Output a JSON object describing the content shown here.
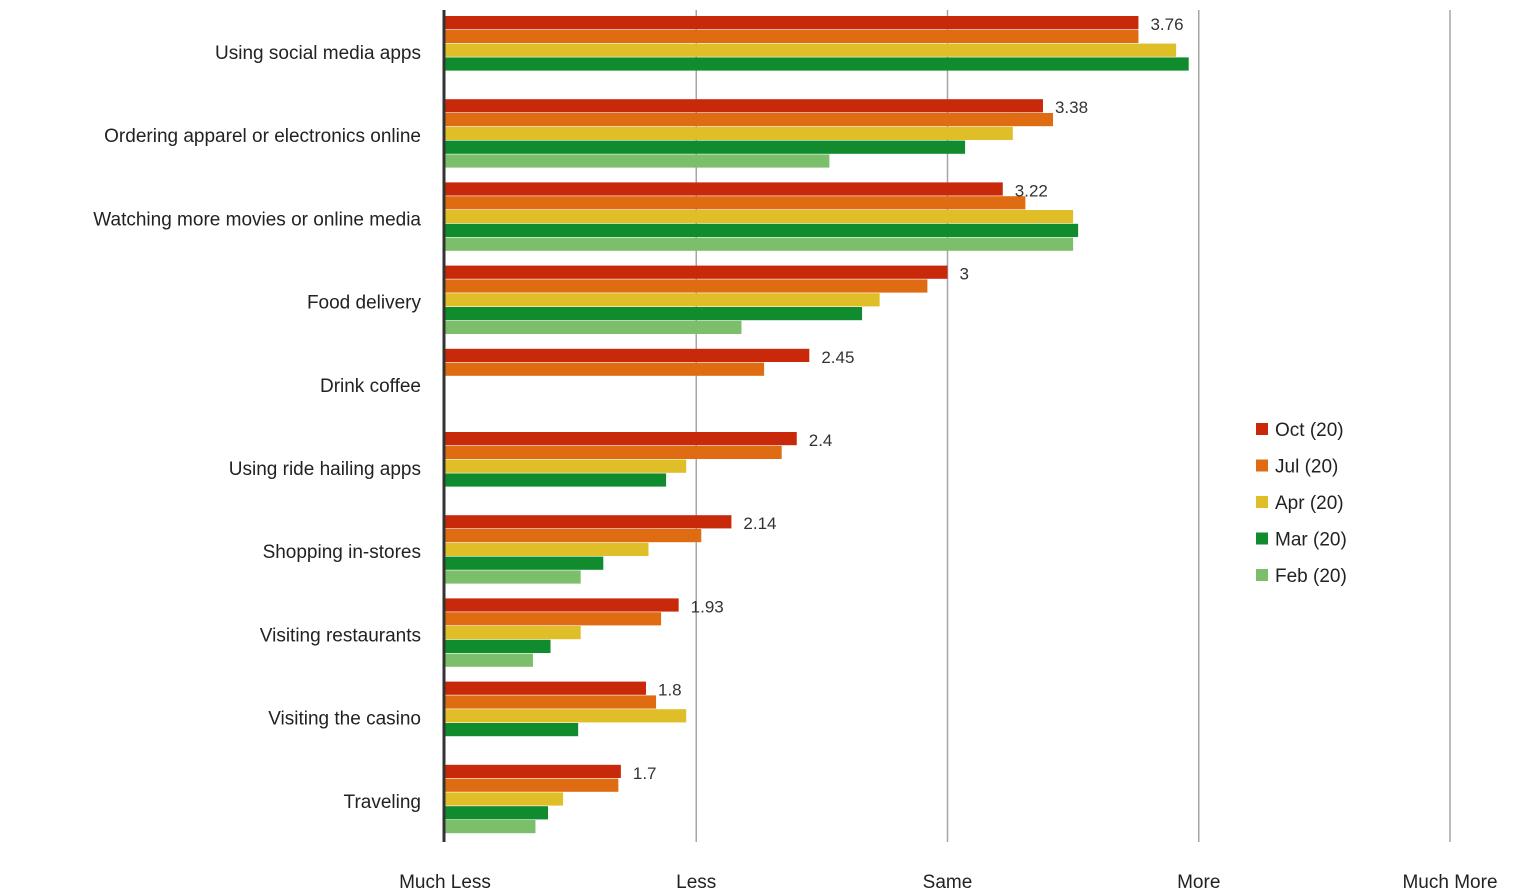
{
  "chart_data": {
    "type": "bar",
    "orientation": "horizontal",
    "categories": [
      "Using social media apps",
      "Ordering apparel or electronics online",
      "Watching more movies or online media",
      "Food delivery",
      "Drink coffee",
      "Using ride hailing apps",
      "Shopping in-stores",
      "Visiting restaurants",
      "Visiting the casino",
      "Traveling"
    ],
    "series": [
      {
        "name": "Oct (20)",
        "color": "#C8290A",
        "values": [
          3.76,
          3.38,
          3.22,
          3.0,
          2.45,
          2.4,
          2.14,
          1.93,
          1.8,
          1.7
        ]
      },
      {
        "name": "Jul (20)",
        "color": "#DF6C12",
        "values": [
          3.76,
          3.42,
          3.31,
          2.92,
          2.27,
          2.34,
          2.02,
          1.86,
          1.84,
          1.69
        ]
      },
      {
        "name": "Apr (20)",
        "color": "#E0BE28",
        "values": [
          3.91,
          3.26,
          3.5,
          2.73,
          null,
          1.96,
          1.81,
          1.54,
          1.96,
          1.47
        ]
      },
      {
        "name": "Mar (20)",
        "color": "#108C2E",
        "values": [
          3.96,
          3.07,
          3.52,
          2.66,
          null,
          1.88,
          1.63,
          1.42,
          1.53,
          1.41
        ]
      },
      {
        "name": "Feb (20)",
        "color": "#7BBF6A",
        "values": [
          null,
          2.53,
          3.5,
          2.18,
          null,
          null,
          1.54,
          1.35,
          null,
          1.36
        ]
      }
    ],
    "value_labels": [
      "3.76",
      "3.38",
      "3.22",
      "3",
      "2.45",
      "2.4",
      "2.14",
      "1.93",
      "1.8",
      "1.7"
    ],
    "xlim": [
      1,
      5
    ],
    "x_ticks": [
      1,
      2,
      3,
      4,
      5
    ],
    "x_tick_labels": [
      "Much Less",
      "Less",
      "Same",
      "More",
      "Much More"
    ],
    "grid": true,
    "legend_position": "right",
    "title": "",
    "xlabel": "",
    "ylabel": ""
  }
}
